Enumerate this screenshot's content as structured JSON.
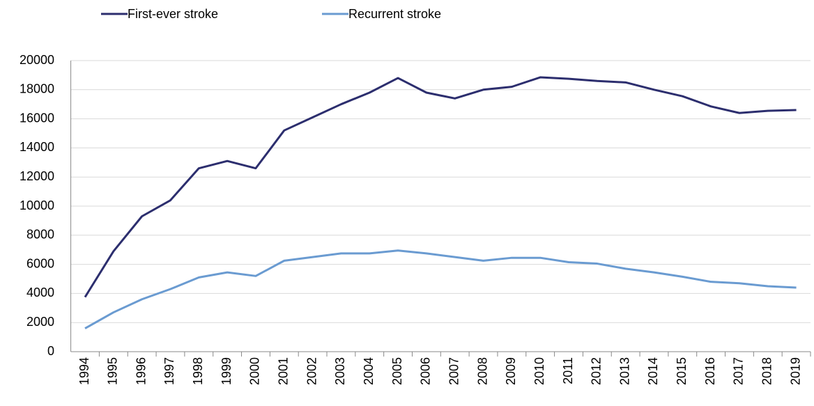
{
  "chart_data": {
    "type": "line",
    "categories": [
      "1994",
      "1995",
      "1996",
      "1997",
      "1998",
      "1999",
      "2000",
      "2001",
      "2002",
      "2003",
      "2004",
      "2005",
      "2006",
      "2007",
      "2008",
      "2009",
      "2010",
      "2011",
      "2012",
      "2013",
      "2014",
      "2015",
      "2016",
      "2017",
      "2018",
      "2019"
    ],
    "series": [
      {
        "name": "First-ever stroke",
        "color": "#2c2e6e",
        "values": [
          3750,
          6900,
          9300,
          10400,
          12600,
          13100,
          12600,
          15200,
          16100,
          17000,
          17800,
          18800,
          17800,
          17400,
          18000,
          18200,
          18850,
          18750,
          18600,
          18500,
          18000,
          17550,
          16850,
          16400,
          16550,
          16600
        ]
      },
      {
        "name": "Recurrent stroke",
        "color": "#6a9bd1",
        "values": [
          1600,
          2700,
          3600,
          4300,
          5100,
          5450,
          5200,
          6250,
          6500,
          6750,
          6750,
          6950,
          6750,
          6500,
          6250,
          6450,
          6450,
          6150,
          6050,
          5700,
          5450,
          5150,
          4800,
          4700,
          4500,
          4400
        ]
      }
    ],
    "ylim": [
      0,
      20000
    ],
    "yticks": [
      0,
      2000,
      4000,
      6000,
      8000,
      10000,
      12000,
      14000,
      16000,
      18000,
      20000
    ],
    "grid": true,
    "legend": "top"
  }
}
